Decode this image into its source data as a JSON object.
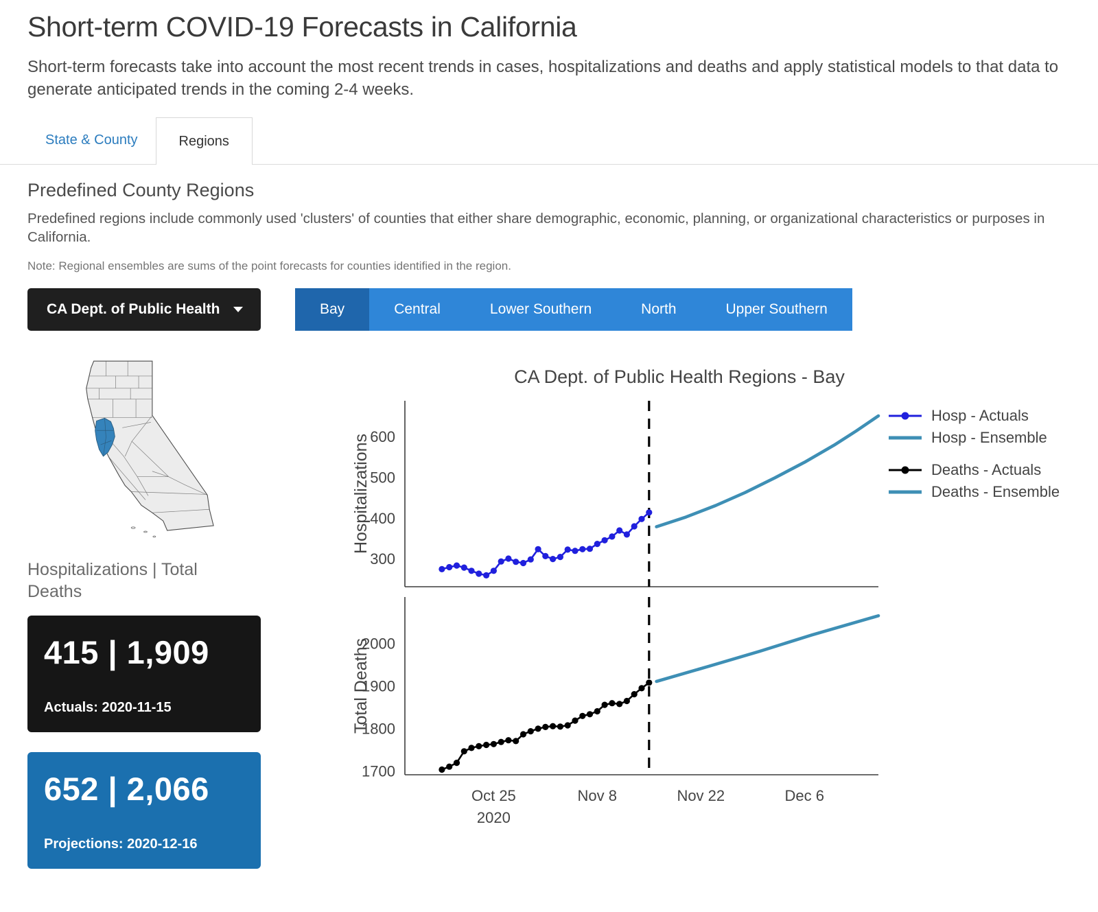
{
  "header": {
    "title": "Short-term COVID-19 Forecasts in California",
    "subtitle": "Short-term forecasts take into account the most recent trends in cases, hospitalizations and deaths and apply statistical models to that data to generate anticipated trends in the coming 2-4 weeks."
  },
  "tabs": [
    {
      "label": "State & County",
      "active": false
    },
    {
      "label": "Regions",
      "active": true
    }
  ],
  "region_section": {
    "heading": "Predefined County Regions",
    "description": "Predefined regions include commonly used 'clusters' of counties that either share demographic, economic, planning, or organizational characteristics or purposes in California.",
    "note": "Note: Regional ensembles are sums of the point forecasts for counties identified in the region."
  },
  "controls": {
    "dropdown_value": "CA Dept. of Public Health",
    "regions": [
      {
        "label": "Bay",
        "selected": true
      },
      {
        "label": "Central",
        "selected": false
      },
      {
        "label": "Lower Southern",
        "selected": false
      },
      {
        "label": "North",
        "selected": false
      },
      {
        "label": "Upper Southern",
        "selected": false
      }
    ]
  },
  "map": {
    "description": "California county map with Bay Area counties highlighted"
  },
  "summary": {
    "heading": "Hospitalizations | Total Deaths",
    "actuals": {
      "value": "415 | 1,909",
      "caption": "Actuals: 2020-11-15"
    },
    "projections": {
      "value": "652 | 2,066",
      "caption": "Projections: 2020-12-16"
    }
  },
  "colors": {
    "link_blue": "#2b7cbe",
    "region_bar_bg": "#2f86d8",
    "region_selected_bg": "#1f66ac",
    "dropdown_bg": "#1f1f1f",
    "stat_actuals_bg": "#161616",
    "stat_projections_bg": "#1b70af",
    "map_base_fill": "#ececec",
    "map_highlight_fill": "#3583bb",
    "hosp_actuals": "#2020dd",
    "deaths_actuals": "#000000",
    "ensemble": "#3e8fb5"
  },
  "chart_data": [
    {
      "type": "line",
      "title": "CA Dept. of Public Health Regions - Bay",
      "ylabel": "Hospitalizations",
      "ylim": [
        233,
        689
      ],
      "yticks": [
        300,
        400,
        500,
        600
      ],
      "x_domain": [
        "2020-10-13",
        "2020-12-16"
      ],
      "forecast_divider_date": "2020-11-15",
      "grid": false,
      "legend_position": "right",
      "series": [
        {
          "name": "Hosp - Actuals",
          "color": "#2020dd",
          "marker": true,
          "points": [
            [
              "2020-10-18",
              276
            ],
            [
              "2020-10-19",
              281
            ],
            [
              "2020-10-20",
              285
            ],
            [
              "2020-10-21",
              280
            ],
            [
              "2020-10-22",
              272
            ],
            [
              "2020-10-23",
              265
            ],
            [
              "2020-10-24",
              261
            ],
            [
              "2020-10-25",
              272
            ],
            [
              "2020-10-26",
              295
            ],
            [
              "2020-10-27",
              302
            ],
            [
              "2020-10-28",
              294
            ],
            [
              "2020-10-29",
              291
            ],
            [
              "2020-10-30",
              300
            ],
            [
              "2020-10-31",
              325
            ],
            [
              "2020-11-01",
              308
            ],
            [
              "2020-11-02",
              301
            ],
            [
              "2020-11-03",
              306
            ],
            [
              "2020-11-04",
              324
            ],
            [
              "2020-11-05",
              321
            ],
            [
              "2020-11-06",
              325
            ],
            [
              "2020-11-07",
              326
            ],
            [
              "2020-11-08",
              338
            ],
            [
              "2020-11-09",
              347
            ],
            [
              "2020-11-10",
              356
            ],
            [
              "2020-11-11",
              371
            ],
            [
              "2020-11-12",
              361
            ],
            [
              "2020-11-13",
              381
            ],
            [
              "2020-11-14",
              399
            ],
            [
              "2020-11-15",
              415
            ]
          ]
        },
        {
          "name": "Hosp - Ensemble",
          "color": "#3e8fb5",
          "marker": false,
          "points": [
            [
              "2020-11-16",
              380
            ],
            [
              "2020-11-20",
              404
            ],
            [
              "2020-11-24",
              432
            ],
            [
              "2020-11-28",
              464
            ],
            [
              "2020-12-02",
              500
            ],
            [
              "2020-12-06",
              538
            ],
            [
              "2020-12-10",
              580
            ],
            [
              "2020-12-13",
              615
            ],
            [
              "2020-12-16",
              652
            ]
          ]
        }
      ]
    },
    {
      "type": "line",
      "ylabel": "Total Deaths",
      "ylim": [
        1693,
        2110
      ],
      "yticks": [
        1700,
        1800,
        1900,
        2000
      ],
      "x_domain": [
        "2020-10-13",
        "2020-12-16"
      ],
      "forecast_divider_date": "2020-11-15",
      "grid": false,
      "xticks": [
        [
          "2020-10-25",
          "Oct 25"
        ],
        [
          "2020-11-08",
          "Nov 8"
        ],
        [
          "2020-11-22",
          "Nov 22"
        ],
        [
          "2020-12-06",
          "Dec 6"
        ]
      ],
      "x_year_label": "2020",
      "series": [
        {
          "name": "Deaths - Actuals",
          "color": "#000000",
          "marker": true,
          "points": [
            [
              "2020-10-18",
              1705
            ],
            [
              "2020-10-19",
              1712
            ],
            [
              "2020-10-20",
              1721
            ],
            [
              "2020-10-21",
              1748
            ],
            [
              "2020-10-22",
              1756
            ],
            [
              "2020-10-23",
              1760
            ],
            [
              "2020-10-24",
              1763
            ],
            [
              "2020-10-25",
              1765
            ],
            [
              "2020-10-26",
              1770
            ],
            [
              "2020-10-27",
              1774
            ],
            [
              "2020-10-28",
              1772
            ],
            [
              "2020-10-29",
              1788
            ],
            [
              "2020-10-30",
              1795
            ],
            [
              "2020-10-31",
              1801
            ],
            [
              "2020-11-01",
              1805
            ],
            [
              "2020-11-02",
              1807
            ],
            [
              "2020-11-03",
              1806
            ],
            [
              "2020-11-04",
              1809
            ],
            [
              "2020-11-05",
              1820
            ],
            [
              "2020-11-06",
              1831
            ],
            [
              "2020-11-07",
              1835
            ],
            [
              "2020-11-08",
              1842
            ],
            [
              "2020-11-09",
              1857
            ],
            [
              "2020-11-10",
              1861
            ],
            [
              "2020-11-11",
              1859
            ],
            [
              "2020-11-12",
              1866
            ],
            [
              "2020-11-13",
              1882
            ],
            [
              "2020-11-14",
              1896
            ],
            [
              "2020-11-15",
              1909
            ]
          ]
        },
        {
          "name": "Deaths - Ensemble",
          "color": "#3e8fb5",
          "marker": false,
          "points": [
            [
              "2020-11-16",
              1912
            ],
            [
              "2020-11-23",
              1947
            ],
            [
              "2020-11-30",
              1983
            ],
            [
              "2020-12-07",
              2021
            ],
            [
              "2020-12-16",
              2066
            ]
          ]
        }
      ]
    }
  ]
}
